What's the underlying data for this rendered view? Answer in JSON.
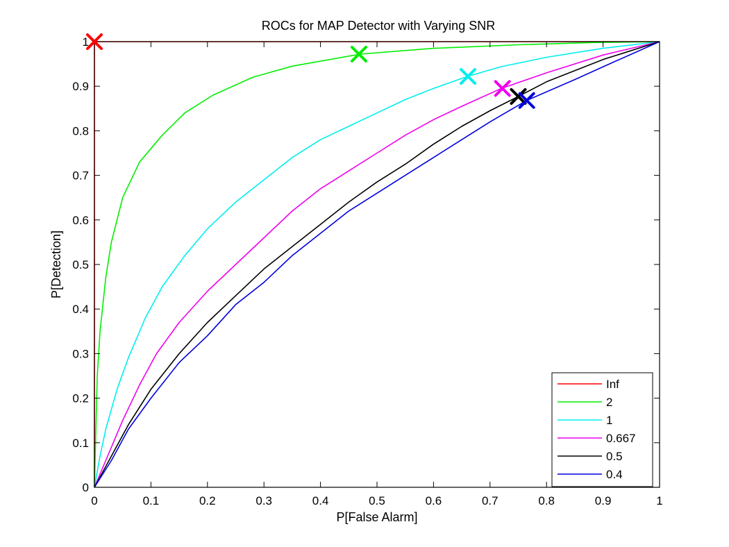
{
  "chart_data": {
    "type": "line",
    "title": "ROCs for MAP Detector with Varying SNR",
    "xlabel": "P[False Alarm]",
    "ylabel": "P[Detection]",
    "xlim": [
      0,
      1
    ],
    "ylim": [
      0,
      1
    ],
    "xticks": [
      "0",
      "0.1",
      "0.2",
      "0.3",
      "0.4",
      "0.5",
      "0.6",
      "0.7",
      "0.8",
      "0.9",
      "1"
    ],
    "yticks": [
      "0",
      "0.1",
      "0.2",
      "0.3",
      "0.4",
      "0.5",
      "0.6",
      "0.7",
      "0.8",
      "0.9",
      "1"
    ],
    "grid": false,
    "legend_position": "bottom-right",
    "series": [
      {
        "name": "Inf",
        "color": "#ff0000",
        "points": [
          [
            0,
            0
          ],
          [
            0,
            1
          ],
          [
            1,
            1
          ]
        ],
        "marker": [
          0.0,
          1.0
        ]
      },
      {
        "name": "2",
        "color": "#00ee00",
        "points": [
          [
            0,
            0
          ],
          [
            0.003,
            0.15
          ],
          [
            0.005,
            0.25
          ],
          [
            0.01,
            0.35
          ],
          [
            0.02,
            0.47
          ],
          [
            0.03,
            0.55
          ],
          [
            0.05,
            0.65
          ],
          [
            0.08,
            0.73
          ],
          [
            0.12,
            0.79
          ],
          [
            0.16,
            0.84
          ],
          [
            0.21,
            0.88
          ],
          [
            0.28,
            0.92
          ],
          [
            0.35,
            0.945
          ],
          [
            0.47,
            0.972
          ],
          [
            0.6,
            0.985
          ],
          [
            0.75,
            0.993
          ],
          [
            0.88,
            0.998
          ],
          [
            1,
            1
          ]
        ],
        "marker": [
          0.468,
          0.972
        ]
      },
      {
        "name": "1",
        "color": "#00eeee",
        "points": [
          [
            0,
            0
          ],
          [
            0.01,
            0.07
          ],
          [
            0.02,
            0.13
          ],
          [
            0.04,
            0.22
          ],
          [
            0.06,
            0.29
          ],
          [
            0.09,
            0.38
          ],
          [
            0.12,
            0.45
          ],
          [
            0.16,
            0.52
          ],
          [
            0.2,
            0.58
          ],
          [
            0.25,
            0.64
          ],
          [
            0.3,
            0.69
          ],
          [
            0.35,
            0.74
          ],
          [
            0.4,
            0.78
          ],
          [
            0.45,
            0.81
          ],
          [
            0.5,
            0.84
          ],
          [
            0.55,
            0.87
          ],
          [
            0.6,
            0.895
          ],
          [
            0.66,
            0.922
          ],
          [
            0.72,
            0.944
          ],
          [
            0.8,
            0.965
          ],
          [
            0.9,
            0.985
          ],
          [
            1,
            1
          ]
        ],
        "marker": [
          0.661,
          0.922
        ]
      },
      {
        "name": "0.667",
        "color": "#ee00ee",
        "points": [
          [
            0,
            0
          ],
          [
            0.02,
            0.06
          ],
          [
            0.05,
            0.15
          ],
          [
            0.08,
            0.23
          ],
          [
            0.11,
            0.3
          ],
          [
            0.15,
            0.37
          ],
          [
            0.2,
            0.44
          ],
          [
            0.25,
            0.5
          ],
          [
            0.3,
            0.56
          ],
          [
            0.35,
            0.62
          ],
          [
            0.4,
            0.67
          ],
          [
            0.45,
            0.71
          ],
          [
            0.5,
            0.75
          ],
          [
            0.55,
            0.79
          ],
          [
            0.6,
            0.825
          ],
          [
            0.65,
            0.855
          ],
          [
            0.72,
            0.895
          ],
          [
            0.8,
            0.93
          ],
          [
            0.9,
            0.97
          ],
          [
            1,
            1
          ]
        ],
        "marker": [
          0.722,
          0.895
        ]
      },
      {
        "name": "0.5",
        "color": "#000000",
        "points": [
          [
            0,
            0
          ],
          [
            0.03,
            0.07
          ],
          [
            0.06,
            0.14
          ],
          [
            0.1,
            0.22
          ],
          [
            0.15,
            0.3
          ],
          [
            0.2,
            0.37
          ],
          [
            0.25,
            0.43
          ],
          [
            0.3,
            0.49
          ],
          [
            0.35,
            0.54
          ],
          [
            0.4,
            0.59
          ],
          [
            0.45,
            0.64
          ],
          [
            0.5,
            0.685
          ],
          [
            0.55,
            0.725
          ],
          [
            0.6,
            0.77
          ],
          [
            0.65,
            0.81
          ],
          [
            0.7,
            0.845
          ],
          [
            0.75,
            0.877
          ],
          [
            0.8,
            0.91
          ],
          [
            0.9,
            0.96
          ],
          [
            1,
            1
          ]
        ],
        "marker": [
          0.75,
          0.877
        ]
      },
      {
        "name": "0.4",
        "color": "#0000dd",
        "points": [
          [
            0,
            0
          ],
          [
            0.03,
            0.06
          ],
          [
            0.06,
            0.13
          ],
          [
            0.1,
            0.2
          ],
          [
            0.15,
            0.28
          ],
          [
            0.2,
            0.34
          ],
          [
            0.25,
            0.41
          ],
          [
            0.3,
            0.46
          ],
          [
            0.35,
            0.52
          ],
          [
            0.4,
            0.57
          ],
          [
            0.45,
            0.62
          ],
          [
            0.5,
            0.66
          ],
          [
            0.55,
            0.7
          ],
          [
            0.6,
            0.74
          ],
          [
            0.65,
            0.78
          ],
          [
            0.7,
            0.82
          ],
          [
            0.765,
            0.868
          ],
          [
            0.85,
            0.915
          ],
          [
            0.92,
            0.955
          ],
          [
            1,
            1
          ]
        ],
        "marker": [
          0.765,
          0.868
        ]
      }
    ]
  }
}
